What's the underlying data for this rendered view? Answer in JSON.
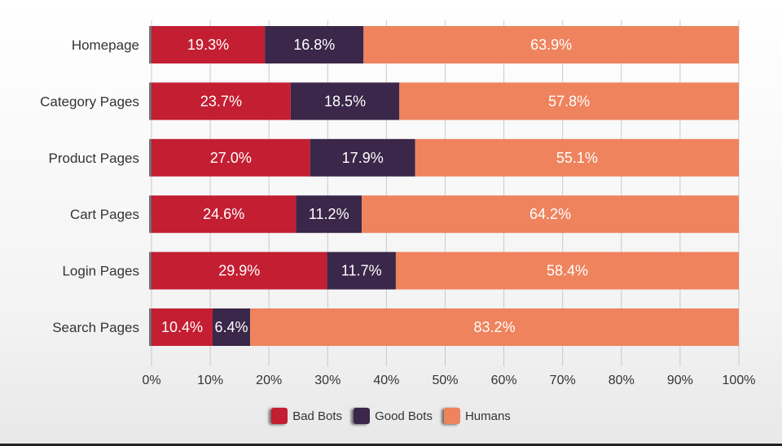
{
  "chart_data": {
    "type": "bar",
    "orientation": "horizontal",
    "stacked": true,
    "categories": [
      "Homepage",
      "Category Pages",
      "Product Pages",
      "Cart Pages",
      "Login Pages",
      "Search Pages"
    ],
    "series": [
      {
        "name": "Bad Bots",
        "color": "#c41e32",
        "values": [
          19.3,
          23.7,
          27.0,
          24.6,
          29.9,
          10.4
        ],
        "labels": [
          "19.3%",
          "23.7%",
          "27.0%",
          "24.6%",
          "29.9%",
          "10.4%"
        ]
      },
      {
        "name": "Good Bots",
        "color": "#3a2749",
        "values": [
          16.8,
          18.5,
          17.9,
          11.2,
          11.7,
          6.4
        ],
        "labels": [
          "16.8%",
          "18.5%",
          "17.9%",
          "11.2%",
          "11.7%",
          "6.4%"
        ]
      },
      {
        "name": "Humans",
        "color": "#ee835d",
        "values": [
          63.9,
          57.8,
          55.1,
          64.2,
          58.4,
          83.2
        ],
        "labels": [
          "63.9%",
          "57.8%",
          "55.1%",
          "64.2%",
          "58.4%",
          "83.2%"
        ]
      }
    ],
    "x_ticks": [
      "0%",
      "10%",
      "20%",
      "30%",
      "40%",
      "50%",
      "60%",
      "70%",
      "80%",
      "90%",
      "100%"
    ],
    "xlim": [
      0,
      100
    ],
    "grid": true,
    "legend_position": "bottom"
  }
}
